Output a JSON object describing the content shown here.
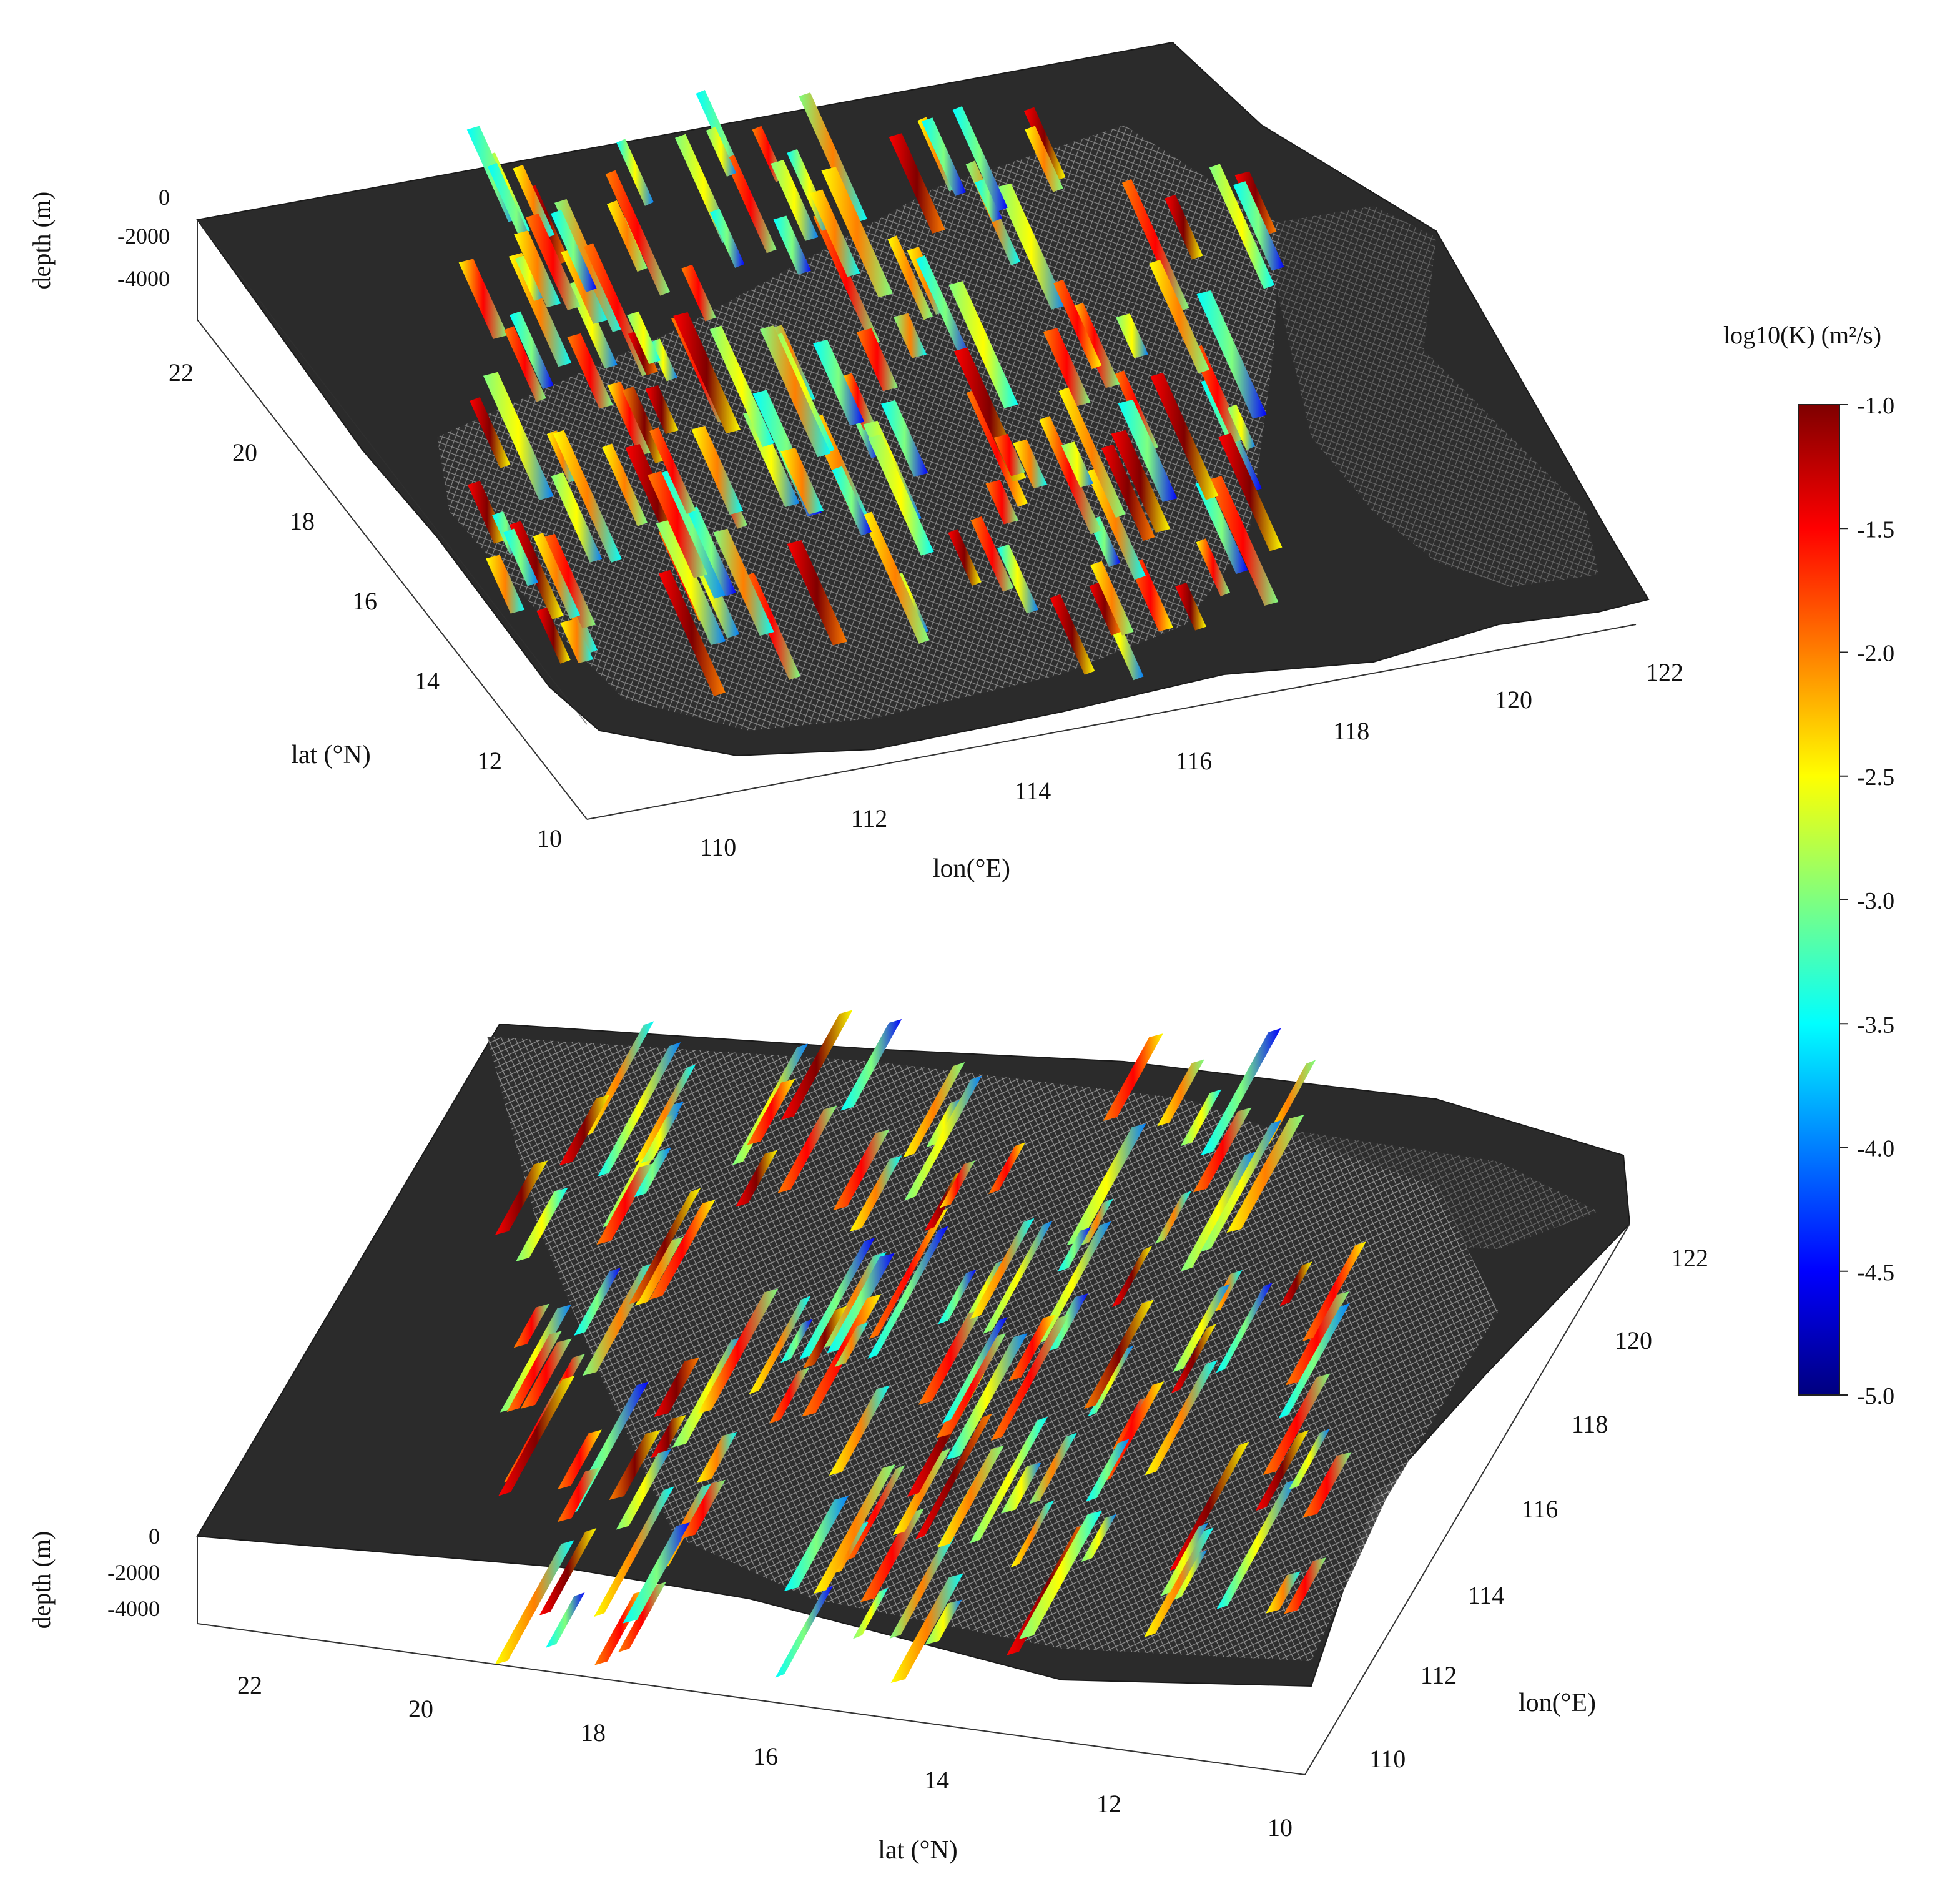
{
  "colorbar": {
    "title": "log10(K)  (m²/s)",
    "ticks": [
      "-1.0",
      "-1.5",
      "-2.0",
      "-2.5",
      "-3.0",
      "-3.5",
      "-4.0",
      "-4.5",
      "-5.0"
    ],
    "range": [
      -5.0,
      -1.0
    ],
    "colormap": "jet",
    "colors": [
      "#00007f",
      "#0000ff",
      "#007fff",
      "#00ffff",
      "#7fff7f",
      "#ffff00",
      "#ff7f00",
      "#ff0000",
      "#7f0000"
    ]
  },
  "chart_data": [
    {
      "type": "surface-3d",
      "panel": "top",
      "description_type": "3-D bathymetry with vertical K sections",
      "xlabel": "lon(°E)",
      "ylabel": "lat (°N)",
      "zlabel": "depth (m)",
      "x_ticks": [
        "110",
        "112",
        "114",
        "116",
        "118",
        "120",
        "122"
      ],
      "y_ticks": [
        "10",
        "12",
        "14",
        "16",
        "18",
        "20",
        "22"
      ],
      "z_ticks": [
        "0",
        "-2000",
        "-4000"
      ],
      "xlim": [
        109,
        122
      ],
      "ylim": [
        10,
        23
      ],
      "zlim": [
        -4000,
        0
      ],
      "surface_color": "#2b2b2b"
    },
    {
      "type": "surface-3d",
      "panel": "bottom",
      "xlabel": "lat (°N)",
      "ylabel": "lon(°E)",
      "zlabel": "depth (m)",
      "x_ticks": [
        "22",
        "20",
        "18",
        "16",
        "14",
        "12",
        "10"
      ],
      "y_ticks": [
        "110",
        "112",
        "114",
        "116",
        "118",
        "120",
        "122"
      ],
      "z_ticks": [
        "0",
        "-2000",
        "-4000"
      ],
      "xlim": [
        10,
        23
      ],
      "ylim": [
        109,
        122
      ],
      "zlim": [
        -4000,
        0
      ],
      "surface_color": "#2b2b2b"
    }
  ]
}
